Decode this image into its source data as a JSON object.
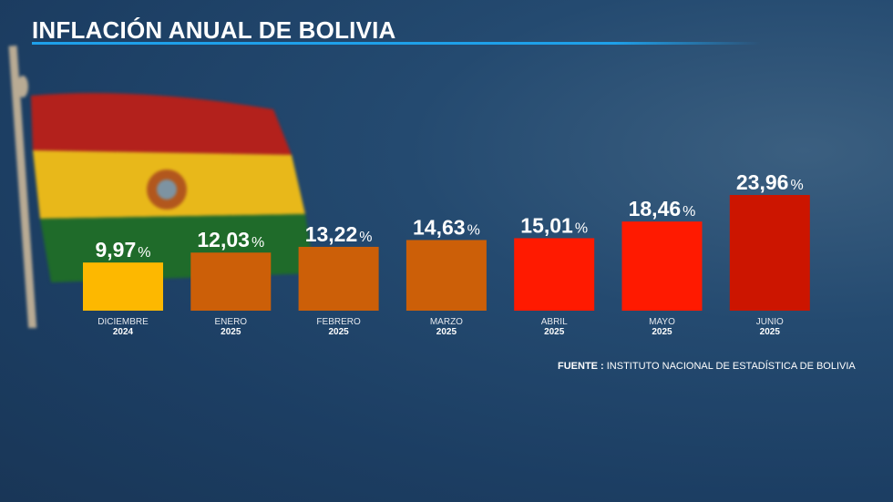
{
  "title": "INFLACIÓN ANUAL DE BOLIVIA",
  "source": {
    "label": "FUENTE :",
    "text": "INSTITUTO NACIONAL DE ESTADÍSTICA DE BOLIVIA"
  },
  "colors": {
    "accent": "#1ea0ea",
    "yellow": "#fdb800",
    "orange": "#cc5f08",
    "red": "#ff1a00",
    "dark_red": "#cc1500"
  },
  "chart_data": {
    "type": "bar",
    "title": "INFLACIÓN ANUAL DE BOLIVIA",
    "categories": [
      {
        "month": "DICIEMBRE",
        "year": "2024"
      },
      {
        "month": "ENERO",
        "year": "2025"
      },
      {
        "month": "FEBRERO",
        "year": "2025"
      },
      {
        "month": "MARZO",
        "year": "2025"
      },
      {
        "month": "ABRIL",
        "year": "2025"
      },
      {
        "month": "MAYO",
        "year": "2025"
      },
      {
        "month": "JUNIO",
        "year": "2025"
      }
    ],
    "values": [
      9.97,
      12.03,
      13.22,
      14.63,
      15.01,
      18.46,
      23.96
    ],
    "value_labels": [
      "9,97",
      "12,03",
      "13,22",
      "14,63",
      "15,01",
      "18,46",
      "23,96"
    ],
    "unit": "%",
    "bar_colors": [
      "#fdb800",
      "#cc5f08",
      "#cc5f08",
      "#cc5f08",
      "#ff1a00",
      "#ff1a00",
      "#cc1500"
    ],
    "grid": false,
    "ylim": [
      0,
      25
    ]
  }
}
